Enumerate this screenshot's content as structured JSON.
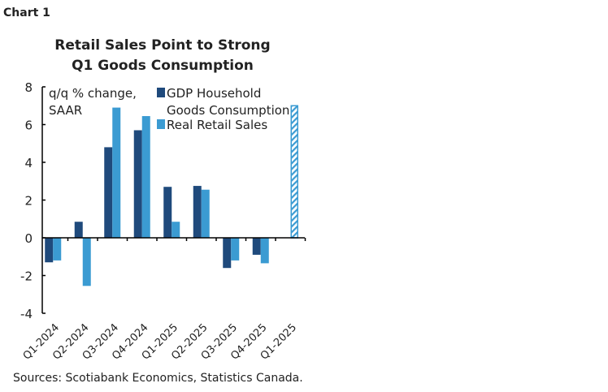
{
  "chart_label": "Chart 1",
  "chart_data": {
    "type": "bar",
    "title": "Retail Sales Point to Strong Q1 Goods Consumption",
    "title_lines": [
      "Retail Sales Point to Strong",
      "Q1 Goods Consumption"
    ],
    "ylabel_lines": [
      "q/q % change,",
      "SAAR"
    ],
    "ylim": [
      -4,
      8
    ],
    "yticks": [
      8,
      6,
      4,
      2,
      0,
      -2,
      -4
    ],
    "grid": false,
    "legend_placement": "top-center",
    "categories": [
      "Q1-2024",
      "Q2-2024",
      "Q3-2024",
      "Q4-2024",
      "Q1-2025",
      "Q2-2025",
      "Q3-2025",
      "Q4-2025",
      "Q1-2025"
    ],
    "series": [
      {
        "name": "GDP Household Goods Consumption",
        "legend_lines": [
          "GDP Household",
          "Goods Consumption"
        ],
        "color": "#1f4a7c",
        "values": [
          -1.3,
          0.85,
          4.8,
          5.7,
          2.7,
          2.75,
          -1.6,
          -0.9,
          null
        ]
      },
      {
        "name": "Real Retail Sales",
        "legend_lines": [
          "Real Retail Sales"
        ],
        "color": "#3b9bd2",
        "values": [
          -1.2,
          -2.55,
          6.9,
          6.45,
          0.85,
          2.55,
          -1.2,
          -1.35,
          7.0
        ],
        "hatched_last": true
      }
    ]
  },
  "source": "Sources: Scotiabank Economics, Statistics Canada."
}
